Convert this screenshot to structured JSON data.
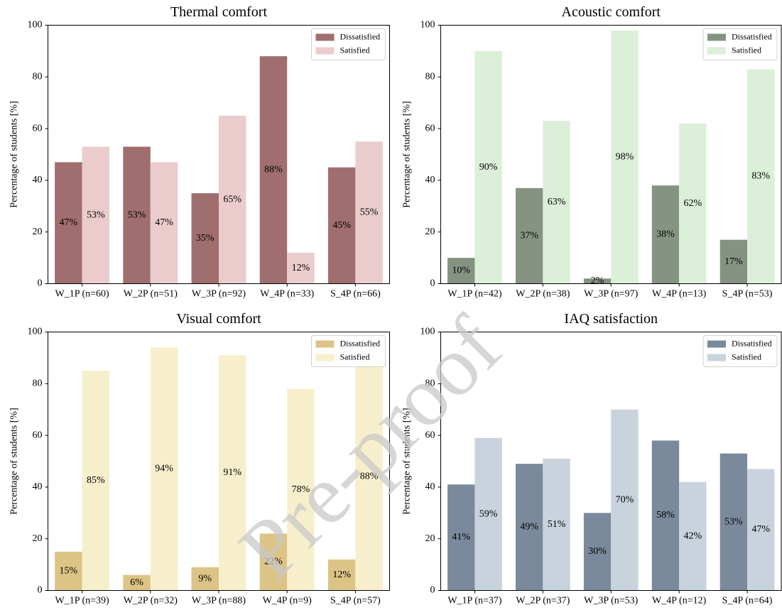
{
  "chart_data": [
    {
      "type": "bar",
      "title": "Thermal comfort",
      "ylabel": "Percentage of students [%]",
      "categories": [
        "W_1P (n=60)",
        "W_2P (n=51)",
        "W_3P (n=92)",
        "W_4P (n=33)",
        "S_4P (n=66)"
      ],
      "series": [
        {
          "name": "Dissatisfied",
          "color": "#a06e6e",
          "values": [
            47,
            53,
            35,
            88,
            45
          ],
          "value_labels": [
            "47%",
            "53%",
            "35%",
            "88%",
            "45%"
          ]
        },
        {
          "name": "Satisfied",
          "color": "#ebcccd",
          "values": [
            53,
            47,
            65,
            12,
            55
          ],
          "value_labels": [
            "53%",
            "47%",
            "65%",
            "12%",
            "55%"
          ]
        }
      ],
      "ylim": [
        0,
        100
      ],
      "yticks": [
        0,
        20,
        40,
        60,
        80,
        100
      ],
      "legend": "upper right"
    },
    {
      "type": "bar",
      "title": "Acoustic comfort",
      "ylabel": "Percentage of students [%]",
      "categories": [
        "W_1P (n=42)",
        "W_2P (n=38)",
        "W_3P (n=97)",
        "W_4P (n=13)",
        "S_4P (n=53)"
      ],
      "series": [
        {
          "name": "Dissatisfied",
          "color": "#859482",
          "values": [
            10,
            37,
            2,
            38,
            17
          ],
          "value_labels": [
            "10%",
            "37%",
            "2%",
            "38%",
            "17%"
          ]
        },
        {
          "name": "Satisfied",
          "color": "#dcefd9",
          "values": [
            90,
            63,
            98,
            62,
            83
          ],
          "value_labels": [
            "90%",
            "63%",
            "98%",
            "62%",
            "83%"
          ]
        }
      ],
      "ylim": [
        0,
        100
      ],
      "yticks": [
        0,
        20,
        40,
        60,
        80,
        100
      ],
      "legend": "upper right"
    },
    {
      "type": "bar",
      "title": "Visual comfort",
      "ylabel": "Percentage of students [%]",
      "categories": [
        "W_1P (n=39)",
        "W_2P (n=32)",
        "W_3P (n=88)",
        "W_4P (n=9)",
        "S_4P (n=57)"
      ],
      "series": [
        {
          "name": "Dissatisfied",
          "color": "#dcc486",
          "values": [
            15,
            6,
            9,
            22,
            12
          ],
          "value_labels": [
            "15%",
            "6%",
            "9%",
            "22%",
            "12%"
          ]
        },
        {
          "name": "Satisfied",
          "color": "#f7eecb",
          "values": [
            85,
            94,
            91,
            78,
            88
          ],
          "value_labels": [
            "85%",
            "94%",
            "91%",
            "78%",
            "88%"
          ]
        }
      ],
      "ylim": [
        0,
        100
      ],
      "yticks": [
        0,
        20,
        40,
        60,
        80,
        100
      ],
      "legend": "upper right"
    },
    {
      "type": "bar",
      "title": "IAQ satisfaction",
      "ylabel": "Percentage of students [%]",
      "categories": [
        "W_1P (n=37)",
        "W_2P (n=37)",
        "W_3P (n=53)",
        "W_4P (n=12)",
        "S_4P (n=64)"
      ],
      "series": [
        {
          "name": "Dissatisfied",
          "color": "#7a8a9c",
          "values": [
            41,
            49,
            30,
            58,
            53
          ],
          "value_labels": [
            "41%",
            "49%",
            "30%",
            "58%",
            "53%"
          ]
        },
        {
          "name": "Satisfied",
          "color": "#c8d3dd",
          "values": [
            59,
            51,
            70,
            42,
            47
          ],
          "value_labels": [
            "59%",
            "51%",
            "70%",
            "42%",
            "47%"
          ]
        }
      ],
      "ylim": [
        0,
        100
      ],
      "yticks": [
        0,
        20,
        40,
        60,
        80,
        100
      ],
      "legend": "upper right"
    }
  ],
  "watermark": "Pre-proof"
}
